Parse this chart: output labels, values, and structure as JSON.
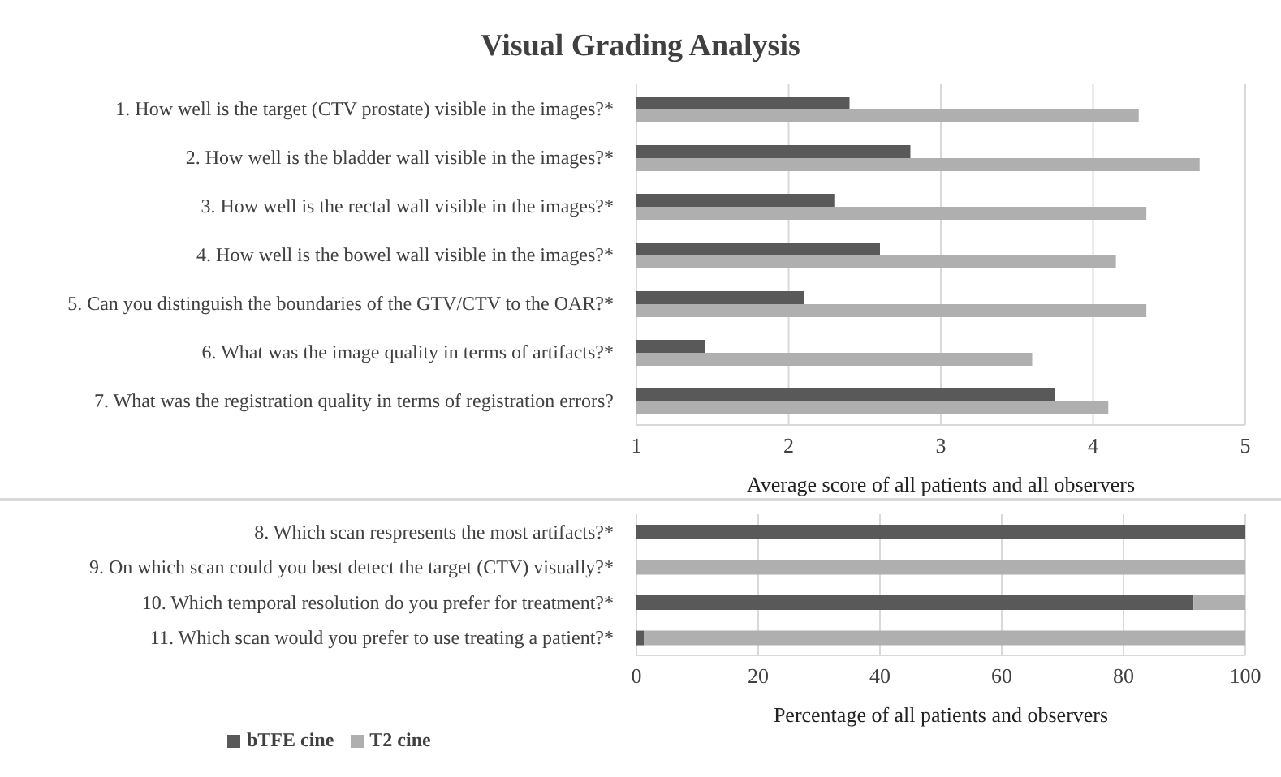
{
  "chart_data": [
    {
      "type": "bar",
      "orientation": "horizontal",
      "title": "Visual Grading Analysis",
      "xlabel": "Average score of all patients and all observers",
      "categories": [
        "1. How well is the target (CTV prostate) visible in the images?*",
        "2. How well is the bladder wall visible in the images?*",
        "3. How well is the rectal wall visible in the images?*",
        "4. How well is the bowel wall visible in the images?*",
        "5. Can you distinguish the boundaries of the GTV/CTV to the OAR?*",
        "6. What was the image quality in terms of artifacts?*",
        "7. What was the registration quality in terms of registration errors?"
      ],
      "series": [
        {
          "color": "#595959",
          "values": [
            2.4,
            2.8,
            2.3,
            2.6,
            2.1,
            1.45,
            3.75
          ]
        },
        {
          "color": "#afafaf",
          "values": [
            4.3,
            4.7,
            4.35,
            4.15,
            4.35,
            3.6,
            4.1
          ]
        }
      ],
      "xlim": [
        1,
        5
      ],
      "xticks": [
        1,
        2,
        3,
        4,
        5
      ],
      "grid": "x"
    },
    {
      "type": "bar",
      "orientation": "horizontal",
      "stacked": true,
      "xlabel": "Percentage of all patients and observers",
      "categories": [
        "8. Which scan respresents the most artifacts?*",
        "9. On which scan could you best detect the target (CTV) visually?*",
        "10. Which temporal resolution do you prefer for treatment?*",
        "11. Which scan would you prefer to use treating a patient?*"
      ],
      "series": [
        {
          "name": "bTFE cine",
          "color": "#595959",
          "values": [
            100,
            0,
            91.5,
            1.2
          ]
        },
        {
          "name": "T2 cine",
          "color": "#afafaf",
          "values": [
            0,
            100,
            8.5,
            98.8
          ]
        }
      ],
      "xlim": [
        0,
        100
      ],
      "xticks": [
        0,
        20,
        40,
        60,
        80,
        100
      ],
      "grid": "x",
      "legend": "bottom left"
    }
  ]
}
